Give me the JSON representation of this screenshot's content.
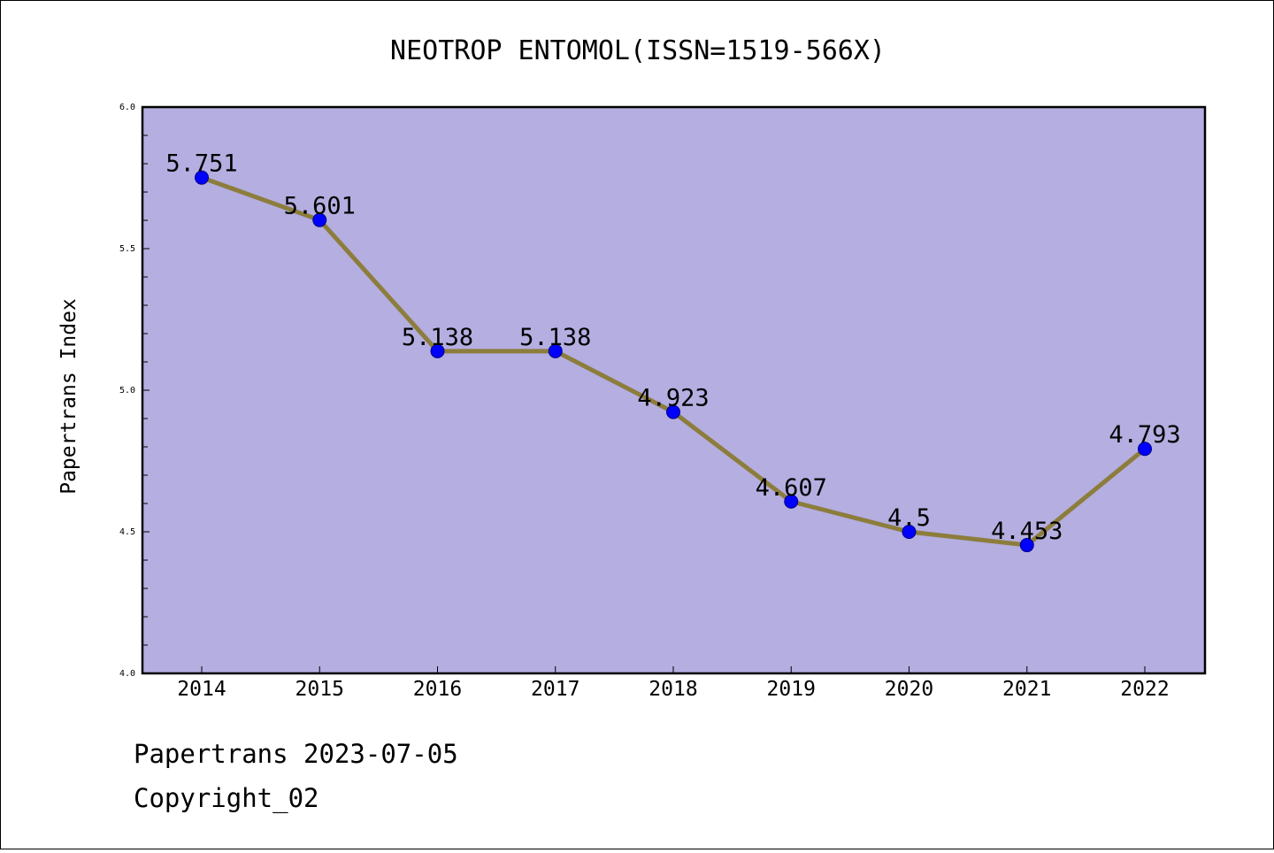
{
  "chart_data": {
    "type": "line",
    "title": "NEOTROP ENTOMOL(ISSN=1519-566X)",
    "xlabel": "",
    "ylabel": "Papertrans Index",
    "categories": [
      "2014",
      "2015",
      "2016",
      "2017",
      "2018",
      "2019",
      "2020",
      "2021",
      "2022"
    ],
    "series": [
      {
        "values": [
          5.751,
          5.601,
          5.138,
          5.138,
          4.923,
          4.607,
          4.5,
          4.453,
          4.793
        ],
        "labels": [
          "5.751",
          "5.601",
          "5.138",
          "5.138",
          "4.923",
          "4.607",
          "4.5",
          "4.453",
          "4.793"
        ]
      }
    ],
    "ylim": [
      4.0,
      6.0
    ],
    "yticks": [
      "4.0",
      "4.5",
      "5.0",
      "5.5",
      "6.0"
    ],
    "grid": false,
    "colors": {
      "plot_background": "#b4aee1",
      "line": "#8c7d3c",
      "marker": "#0000ff"
    }
  },
  "footer": {
    "line1": "Papertrans 2023-07-05",
    "line2": "Copyright_02"
  }
}
